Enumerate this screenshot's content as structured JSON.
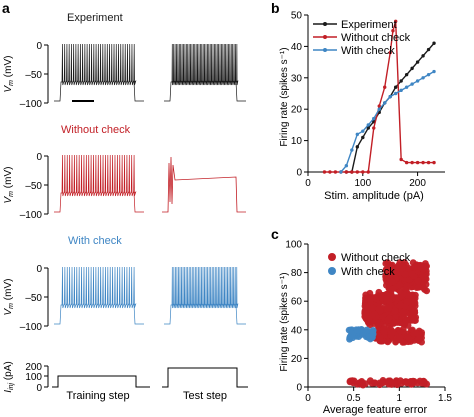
{
  "panel_labels": [
    "a",
    "b",
    "c"
  ],
  "colors": {
    "experiment": "#1a1a1a",
    "without_check": "#c21f26",
    "with_check": "#3f86c4",
    "axis": "#000000"
  },
  "panel_a": {
    "traces": [
      {
        "title": "Experiment",
        "color_key": "experiment",
        "train_spikes": 33,
        "test_spikes": 47,
        "artifact": false
      },
      {
        "title": "Without check",
        "color_key": "without_check",
        "train_spikes": 31,
        "test_spikes": 4,
        "artifact": true
      },
      {
        "title": "With check",
        "color_key": "with_check",
        "train_spikes": 31,
        "test_spikes": 43,
        "artifact": false
      }
    ],
    "vm_label_main": "V",
    "vm_label_sub": "m",
    "vm_label_unit": " (mV)",
    "vm_ticks": [
      "0",
      "–50",
      "–100"
    ],
    "iinj_label_main": "I",
    "iinj_label_sub": "inj",
    "iinj_label_unit": " (pA)",
    "iinj_ticks": [
      "200",
      "100",
      "0"
    ],
    "step_labels": [
      "Training step",
      "Test step"
    ]
  },
  "chart_data": [
    {
      "type": "line",
      "panel": "b",
      "xlabel": "Stim. amplitude (pA)",
      "ylabel": "Firing rate (spikes s⁻¹)",
      "xlim": [
        0,
        250
      ],
      "ylim": [
        0,
        50
      ],
      "xticks": [
        "0",
        "100",
        "200"
      ],
      "yticks": [
        "0",
        "10",
        "20",
        "30",
        "40",
        "50"
      ],
      "legend_position": "top-left",
      "series": [
        {
          "name": "Experiment",
          "color_key": "experiment",
          "x": [
            70,
            80,
            90,
            100,
            110,
            120,
            130,
            140,
            150,
            160,
            170,
            180,
            190,
            200,
            210,
            220,
            230
          ],
          "y": [
            0,
            0,
            8,
            11,
            14,
            16,
            19,
            22,
            24,
            27,
            29,
            31,
            33,
            35,
            37,
            39,
            41
          ]
        },
        {
          "name": "Without check",
          "color_key": "without_check",
          "x": [
            30,
            40,
            50,
            60,
            70,
            80,
            90,
            100,
            110,
            120,
            130,
            140,
            150,
            155,
            160,
            170,
            180,
            190,
            200,
            210,
            220,
            230
          ],
          "y": [
            0,
            0,
            0,
            0,
            0,
            0,
            0,
            0,
            0,
            14,
            21,
            27,
            38,
            45,
            48,
            4,
            3,
            3,
            3,
            3,
            3,
            3
          ]
        },
        {
          "name": "With check",
          "color_key": "with_check",
          "x": [
            60,
            70,
            80,
            90,
            100,
            110,
            120,
            130,
            140,
            150,
            160,
            170,
            180,
            190,
            200,
            210,
            220,
            230
          ],
          "y": [
            0,
            2,
            7,
            12,
            13,
            15,
            17,
            20,
            22,
            24,
            25,
            26,
            27,
            28,
            29,
            30,
            31,
            32
          ]
        }
      ]
    },
    {
      "type": "scatter",
      "panel": "c",
      "xlabel": "Average feature error",
      "ylabel": "Firing rate (spikes s⁻¹)",
      "xlim": [
        0,
        1.5
      ],
      "ylim": [
        0,
        100
      ],
      "xticks": [
        "0",
        "0.5",
        "1",
        "1.5"
      ],
      "yticks": [
        "0",
        "20",
        "40",
        "60",
        "80",
        "100"
      ],
      "legend_position": "top-left",
      "series": [
        {
          "name": "Without check",
          "color_key": "without_check",
          "clusters": [
            {
              "x_range": [
                0.85,
                1.3
              ],
              "y_range": [
                65,
                90
              ]
            },
            {
              "x_range": [
                0.62,
                1.18
              ],
              "y_range": [
                40,
                70
              ]
            },
            {
              "x_range": [
                0.72,
                1.25
              ],
              "y_range": [
                30,
                42
              ]
            },
            {
              "x_range": [
                0.45,
                1.3
              ],
              "y_range": [
                1,
                5
              ]
            }
          ]
        },
        {
          "name": "With check",
          "color_key": "with_check",
          "clusters": [
            {
              "x_range": [
                0.45,
                0.72
              ],
              "y_range": [
                32,
                42
              ]
            }
          ]
        }
      ]
    }
  ]
}
